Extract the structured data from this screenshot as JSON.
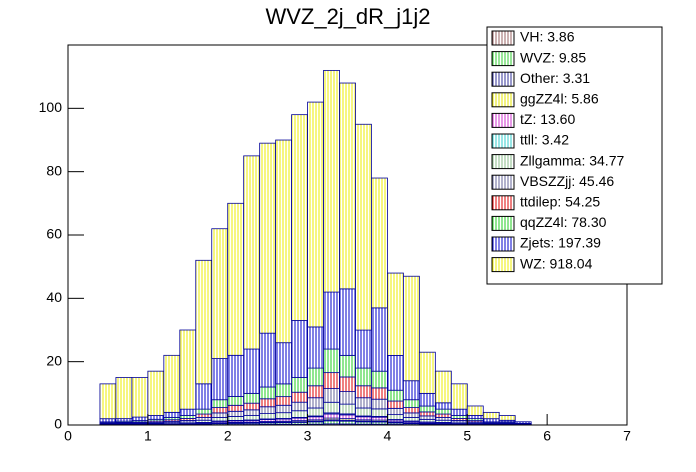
{
  "chart_data": {
    "type": "stacked_histogram",
    "title": "WVZ_2j_dR_j1j2",
    "bins": [
      0.4,
      0.6,
      0.8,
      1.0,
      1.2,
      1.4,
      1.6,
      1.8,
      2.0,
      2.2,
      2.4,
      2.6,
      2.8,
      3.0,
      3.2,
      3.4,
      3.6,
      3.8,
      4.0,
      4.2,
      4.4,
      4.6,
      4.8,
      5.0,
      5.2,
      5.4,
      5.6,
      5.8
    ],
    "xlim": [
      0,
      7
    ],
    "xticks": [
      0,
      1,
      2,
      3,
      4,
      5,
      6,
      7
    ],
    "ylim": [
      0,
      120
    ],
    "yticks": [
      0,
      20,
      40,
      60,
      80,
      100
    ],
    "series": [
      {
        "name": "VH: 3.86",
        "color": "#996666",
        "values": [
          0.02,
          0.02,
          0.02,
          0.03,
          0.04,
          0.05,
          0.08,
          0.12,
          0.14,
          0.15,
          0.18,
          0.2,
          0.23,
          0.27,
          0.36,
          0.33,
          0.27,
          0.26,
          0.17,
          0.12,
          0.09,
          0.08,
          0.05,
          0.03,
          0.02,
          0.02,
          0.01
        ]
      },
      {
        "name": "WVZ: 9.85",
        "color": "#33cc33",
        "values": [
          0.04,
          0.05,
          0.06,
          0.07,
          0.1,
          0.12,
          0.2,
          0.32,
          0.36,
          0.4,
          0.48,
          0.52,
          0.6,
          0.72,
          0.96,
          0.88,
          0.72,
          0.68,
          0.44,
          0.32,
          0.24,
          0.2,
          0.12,
          0.08,
          0.04,
          0.04,
          0.02
        ]
      },
      {
        "name": "Other: 3.31",
        "color": "#333399",
        "values": [
          0.01,
          0.02,
          0.02,
          0.02,
          0.03,
          0.04,
          0.07,
          0.1,
          0.12,
          0.13,
          0.16,
          0.17,
          0.2,
          0.23,
          0.31,
          0.29,
          0.23,
          0.22,
          0.14,
          0.1,
          0.08,
          0.07,
          0.04,
          0.03,
          0.01,
          0.01,
          0.01
        ]
      },
      {
        "name": "ggZZ4l: 5.86",
        "color": "#e6e600",
        "values": [
          0.02,
          0.03,
          0.03,
          0.04,
          0.06,
          0.07,
          0.12,
          0.18,
          0.21,
          0.23,
          0.28,
          0.3,
          0.35,
          0.41,
          0.55,
          0.51,
          0.41,
          0.39,
          0.25,
          0.18,
          0.14,
          0.12,
          0.07,
          0.05,
          0.02,
          0.02,
          0.01
        ]
      },
      {
        "name": "tZ: 13.60",
        "color": "#cc33cc",
        "values": [
          0.05,
          0.06,
          0.08,
          0.1,
          0.13,
          0.16,
          0.27,
          0.43,
          0.49,
          0.54,
          0.65,
          0.7,
          0.81,
          0.97,
          1.3,
          1.19,
          0.97,
          0.92,
          0.59,
          0.43,
          0.32,
          0.27,
          0.16,
          0.11,
          0.05,
          0.05,
          0.03
        ]
      },
      {
        "name": "ttll: 3.42",
        "color": "#33cccc",
        "values": [
          0.01,
          0.02,
          0.02,
          0.03,
          0.03,
          0.04,
          0.07,
          0.11,
          0.13,
          0.14,
          0.17,
          0.18,
          0.21,
          0.25,
          0.34,
          0.31,
          0.25,
          0.24,
          0.15,
          0.11,
          0.08,
          0.07,
          0.04,
          0.03,
          0.01,
          0.01,
          0.01
        ]
      },
      {
        "name": "Zllgamma: 34.77",
        "color": "#88bb88",
        "values": [
          0.14,
          0.17,
          0.2,
          0.25,
          0.34,
          0.42,
          0.7,
          1.12,
          1.26,
          1.4,
          1.68,
          1.82,
          2.1,
          2.52,
          3.36,
          3.08,
          2.52,
          2.38,
          1.54,
          1.12,
          0.84,
          0.7,
          0.42,
          0.28,
          0.14,
          0.14,
          0.07
        ]
      },
      {
        "name": "VBSZZjj: 45.46",
        "color": "#666699",
        "values": [
          0.18,
          0.22,
          0.25,
          0.32,
          0.43,
          0.54,
          0.9,
          1.44,
          1.62,
          1.8,
          2.16,
          2.34,
          2.7,
          3.24,
          4.32,
          3.96,
          3.24,
          3.06,
          1.98,
          1.44,
          1.08,
          0.9,
          0.54,
          0.36,
          0.18,
          0.18,
          0.09
        ]
      },
      {
        "name": "ttdilep: 54.25",
        "color": "#dd0000",
        "values": [
          0.21,
          0.25,
          0.29,
          0.38,
          0.5,
          0.63,
          1.05,
          1.68,
          1.89,
          2.1,
          2.52,
          2.73,
          3.15,
          3.78,
          5.04,
          4.62,
          3.78,
          3.57,
          2.31,
          1.68,
          1.26,
          1.05,
          0.63,
          0.42,
          0.21,
          0.21,
          0.11
        ]
      },
      {
        "name": "qqZZ4l: 78.30",
        "color": "#22cc22",
        "values": [
          0.31,
          0.37,
          0.43,
          0.56,
          0.74,
          0.93,
          1.55,
          2.48,
          2.79,
          3.1,
          3.72,
          4.03,
          4.65,
          5.58,
          7.44,
          6.82,
          5.58,
          5.27,
          3.41,
          2.48,
          1.86,
          1.55,
          0.93,
          0.62,
          0.31,
          0.31,
          0.16
        ]
      },
      {
        "name": "Zjets: 197.39",
        "color": "#0000cc",
        "values": [
          1,
          0.8,
          1.1,
          1.2,
          1.6,
          2,
          8,
          13,
          13,
          14,
          17,
          13,
          18,
          13,
          18,
          21,
          12,
          20,
          11,
          6,
          4,
          2,
          2,
          1,
          1,
          0.5,
          0.5
        ]
      },
      {
        "name": "WZ: 918.04",
        "color": "#eeee00",
        "values": [
          11,
          13,
          12.5,
          14,
          18,
          25,
          39,
          41,
          48,
          61,
          60,
          64,
          65,
          71,
          70,
          65,
          65,
          41,
          26,
          33,
          13,
          10,
          8,
          3,
          2,
          1.5,
          0
        ]
      }
    ]
  }
}
